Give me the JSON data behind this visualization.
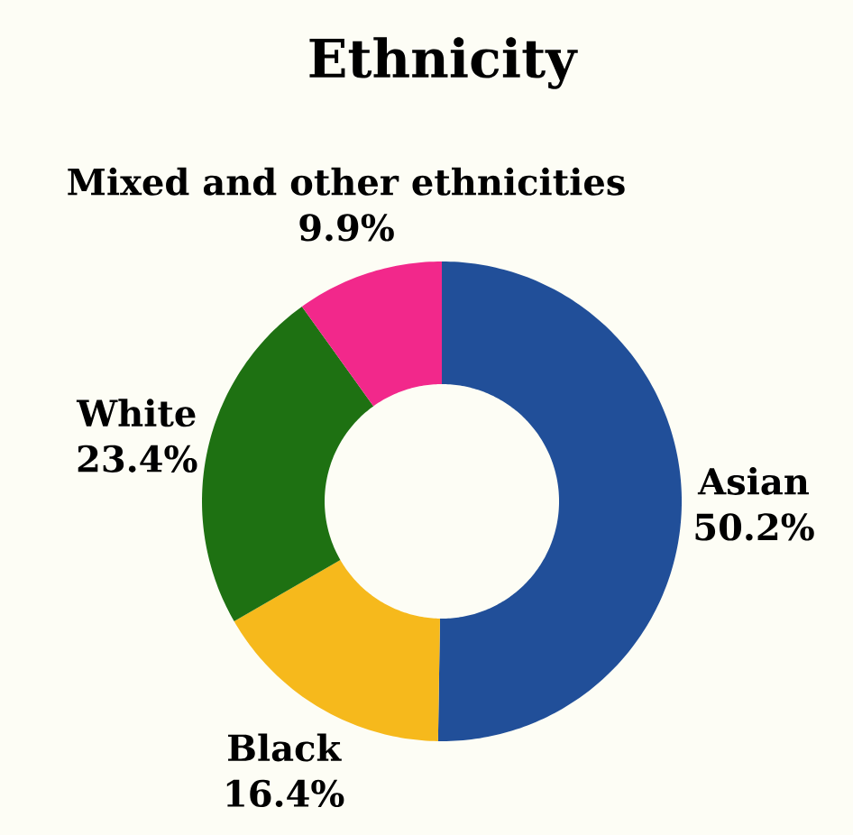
{
  "chart_data": {
    "type": "donut",
    "title": "Ethnicity",
    "categories": [
      "Asian",
      "Black",
      "White",
      "Mixed and other ethnicities"
    ],
    "values": [
      50.2,
      16.4,
      23.4,
      9.9
    ],
    "colors": [
      "#214f99",
      "#f6b91c",
      "#1e7112",
      "#f2288b"
    ],
    "value_labels": [
      "50.2%",
      "16.4%",
      "23.4%",
      "9.9%"
    ]
  }
}
